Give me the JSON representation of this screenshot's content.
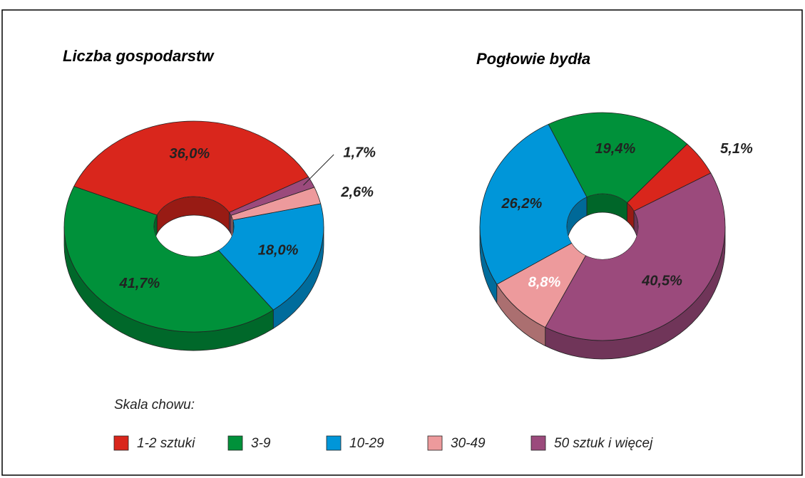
{
  "legend": {
    "title": "Skala chowu:",
    "categories": [
      "1-2 sztuki",
      "3-9",
      "10-29",
      "30-49",
      "50 sztuk i więcej"
    ],
    "colors": [
      "#d9261c",
      "#00913a",
      "#0096d9",
      "#ed9a9c",
      "#9b4a7c"
    ]
  },
  "chart_data": [
    {
      "type": "pie",
      "title": "Liczba gospodarstw",
      "values": [
        36.0,
        41.7,
        18.0,
        2.6,
        1.7
      ],
      "value_labels": [
        "36,0%",
        "41,7%",
        "18,0%",
        "2,6%",
        "1,7%"
      ],
      "value_label_colors": [
        "#222222",
        "#222222",
        "#222222",
        "#222222",
        "#222222"
      ]
    },
    {
      "type": "pie",
      "title": "Pogłowie bydła",
      "values": [
        5.1,
        19.4,
        26.2,
        8.8,
        40.5
      ],
      "value_labels": [
        "5,1%",
        "19,4%",
        "26,2%",
        "8,8%",
        "40,5%"
      ],
      "value_label_colors": [
        "#222222",
        "#222222",
        "#222222",
        "#ffffff",
        "#222222"
      ]
    }
  ]
}
